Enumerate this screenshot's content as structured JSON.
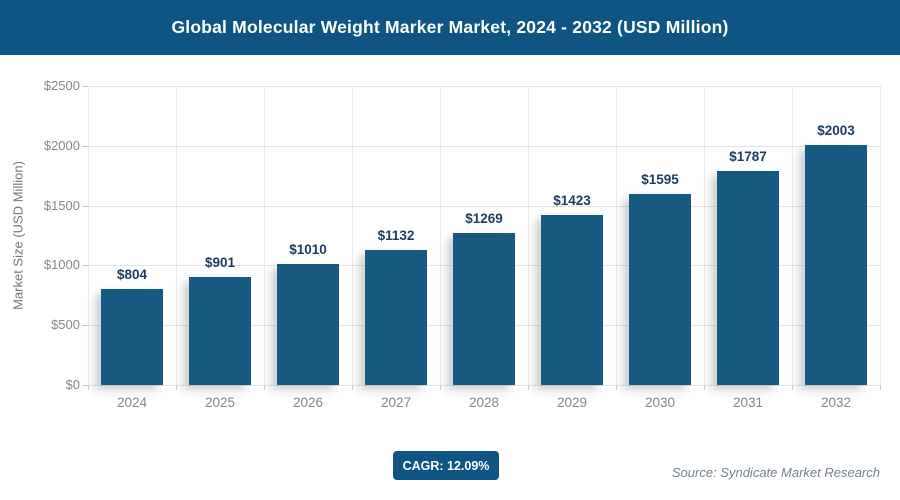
{
  "header": {
    "title": "Global Molecular Weight Marker Market, 2024 - 2032 (USD Million)"
  },
  "y_axis": {
    "title": "Market Size (USD Million)"
  },
  "footer": {
    "cagr_label": "CAGR: 12.09%",
    "source": "Source: Syndicate Market Research"
  },
  "colors": {
    "header_bg": "#0e5584",
    "bar": "#165a82",
    "value_label": "#1c3c5e",
    "axis_text": "#878787",
    "grid": "#e3e3e3",
    "badge_bg": "#0e5584",
    "source_text": "#75838f"
  },
  "chart_data": {
    "type": "bar",
    "title": "Global Molecular Weight Marker Market, 2024 - 2032 (USD Million)",
    "categories": [
      "2024",
      "2025",
      "2026",
      "2027",
      "2028",
      "2029",
      "2030",
      "2031",
      "2032"
    ],
    "values": [
      804,
      901,
      1010,
      1132,
      1269,
      1423,
      1595,
      1787,
      2003
    ],
    "value_labels": [
      "$804",
      "$901",
      "$1010",
      "$1132",
      "$1269",
      "$1423",
      "$1595",
      "$1787",
      "$2003"
    ],
    "xlabel": "",
    "ylabel": "Market Size (USD Million)",
    "ylim": [
      0,
      2500
    ],
    "y_ticks": [
      0,
      500,
      1000,
      1500,
      2000,
      2500
    ],
    "y_tick_labels": [
      "$0",
      "$500",
      "$1000",
      "$1500",
      "$2000",
      "$2500"
    ],
    "grid": true,
    "legend": false,
    "cagr": "12.09%"
  }
}
